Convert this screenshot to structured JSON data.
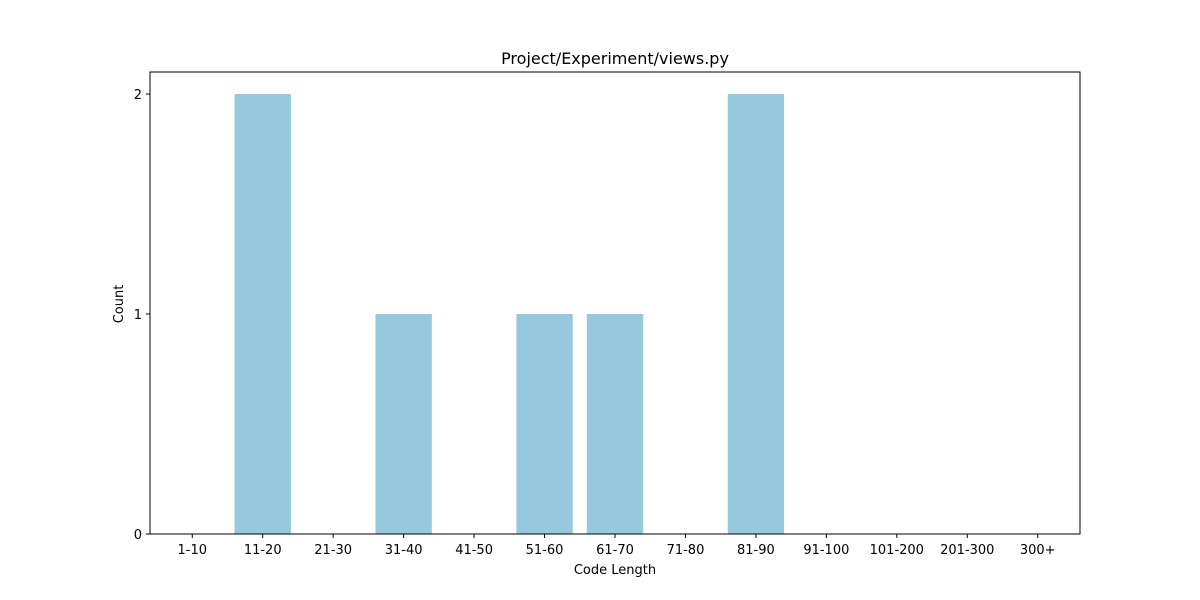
{
  "chart_data": {
    "type": "bar",
    "title": "Project/Experiment/views.py",
    "xlabel": "Code Length",
    "ylabel": "Count",
    "categories": [
      "1-10",
      "11-20",
      "21-30",
      "31-40",
      "41-50",
      "51-60",
      "61-70",
      "71-80",
      "81-90",
      "91-100",
      "101-200",
      "201-300",
      "300+"
    ],
    "values": [
      0,
      2,
      0,
      1,
      0,
      1,
      1,
      0,
      2,
      0,
      0,
      0,
      0
    ],
    "ylim": [
      0,
      2.1
    ],
    "yticks": [
      0,
      1,
      2
    ],
    "bar_color": "#96c9dd",
    "grid": false,
    "legend": "none"
  }
}
